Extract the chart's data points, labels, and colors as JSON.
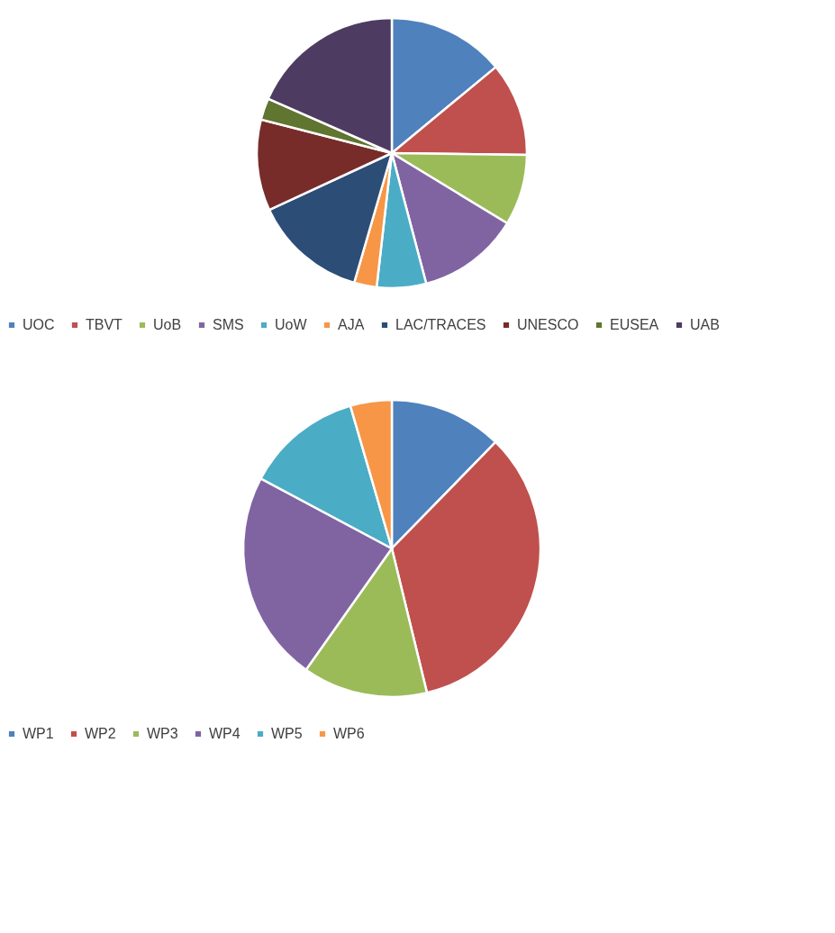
{
  "chart_data": [
    {
      "type": "pie",
      "categories": [
        "UOC",
        "TBVT",
        "UoB",
        "SMS",
        "UoW",
        "AJA",
        "LAC/TRACES",
        "UNESCO",
        "EUSEA",
        "UAB"
      ],
      "values": [
        14,
        11.2,
        8.5,
        12.2,
        5.9,
        2.7,
        13.6,
        10.9,
        2.6,
        18.4
      ],
      "colors": [
        "#4f81bd",
        "#c0504d",
        "#9bbb59",
        "#8064a2",
        "#4bacc6",
        "#f79646",
        "#2c4d75",
        "#772c2a",
        "#5f7530",
        "#4d3b62"
      ],
      "legend": "bottom"
    },
    {
      "type": "pie",
      "categories": [
        "WP1",
        "WP2",
        "WP3",
        "WP4",
        "WP5",
        "WP6"
      ],
      "values": [
        12.3,
        33.9,
        13.6,
        23,
        12.7,
        4.5
      ],
      "colors": [
        "#4f81bd",
        "#c0504d",
        "#9bbb59",
        "#8064a2",
        "#4bacc6",
        "#f79646"
      ],
      "legend": "bottom"
    }
  ]
}
